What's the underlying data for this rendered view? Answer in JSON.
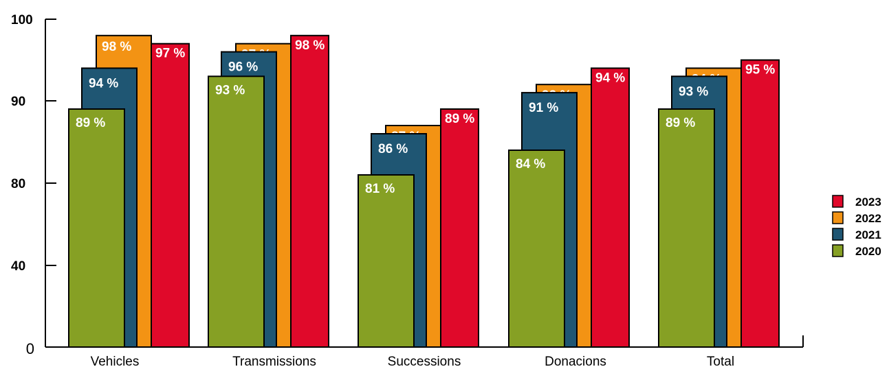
{
  "chart_data": {
    "type": "bar",
    "categories": [
      "Vehicles",
      "Transmissions",
      "Successions",
      "Donacions",
      "Total"
    ],
    "series": [
      {
        "name": "2020",
        "color": "#86a024",
        "values": [
          89,
          93,
          81,
          84,
          89
        ]
      },
      {
        "name": "2021",
        "color": "#1f5673",
        "values": [
          94,
          96,
          86,
          91,
          93
        ]
      },
      {
        "name": "2022",
        "color": "#f39314",
        "values": [
          98,
          97,
          87,
          92,
          94
        ]
      },
      {
        "name": "2023",
        "color": "#e0092a",
        "values": [
          97,
          98,
          89,
          94,
          95
        ]
      }
    ],
    "value_suffix": " %",
    "y_ticks": [
      "0",
      "40",
      "80",
      "90",
      "100"
    ],
    "y_tick_values": [
      0,
      40,
      80,
      90,
      100
    ],
    "y_scale": "broken",
    "legend_position": "right",
    "legend_order": [
      "2023",
      "2022",
      "2021",
      "2020"
    ],
    "grid": false
  }
}
